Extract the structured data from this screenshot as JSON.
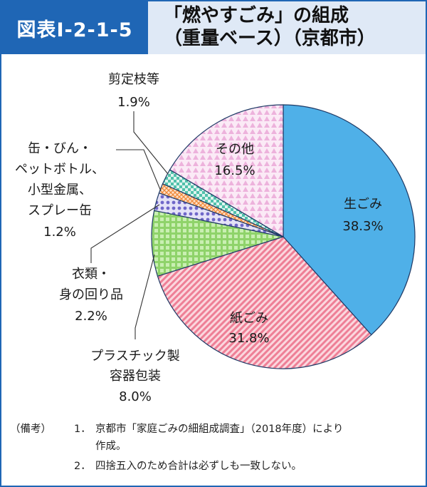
{
  "header": {
    "figure_number": "図表Ⅰ-2-1-5",
    "title_line1": "「燃やすごみ」の組成",
    "title_line2": "（重量ベース）（京都市）"
  },
  "chart_data": {
    "type": "pie",
    "title": "「燃やすごみ」の組成（重量ベース）（京都市）",
    "start": "top, clockwise",
    "slices": [
      {
        "label": "生ごみ",
        "value": 38.3,
        "value_label": "38.3%",
        "color": "#4fb0e8",
        "pattern": "solid"
      },
      {
        "label": "紙ごみ",
        "value": 31.8,
        "value_label": "31.8%",
        "color": "#f08fa3",
        "pattern": "diagonal-stripes"
      },
      {
        "label": "プラスチック製容器包装",
        "value": 8.0,
        "value_label": "8.0%",
        "color": "#8fd36a",
        "pattern": "grid"
      },
      {
        "label": "衣類・身の回り品",
        "value": 2.2,
        "value_label": "2.2%",
        "color": "#8e86d6",
        "pattern": "dots"
      },
      {
        "label": "缶・びん・ペットボトル、小型金属、スプレー缶",
        "value": 1.2,
        "value_label": "1.2%",
        "color": "#f5a05a",
        "pattern": "crosshatch"
      },
      {
        "label": "剪定枝等",
        "value": 1.9,
        "value_label": "1.9%",
        "color": "#5cc8b4",
        "pattern": "checker"
      },
      {
        "label": "その他",
        "value": 16.5,
        "value_label": "16.5%",
        "color": "#f2c4e6",
        "pattern": "triangles"
      }
    ],
    "labels": {
      "namagomi": {
        "name": "生ごみ",
        "value": "38.3%"
      },
      "kamigomi": {
        "name": "紙ごみ",
        "value": "31.8%"
      },
      "plastic": {
        "lines": [
          "プラスチック製",
          "容器包装"
        ],
        "value": "8.0%"
      },
      "irui": {
        "lines": [
          "衣類・",
          "身の回り品"
        ],
        "value": "2.2%"
      },
      "can": {
        "lines": [
          "缶・びん・",
          "ペットボトル、",
          "小型金属、",
          "スプレー缶"
        ],
        "value": "1.2%"
      },
      "sentei": {
        "name": "剪定枝等",
        "value": "1.9%"
      },
      "sonota": {
        "name": "その他",
        "value": "16.5%"
      }
    }
  },
  "notes": {
    "key": "（備考）",
    "items": [
      {
        "num": "1．",
        "lines": [
          "京都市「家庭ごみの細組成調査」（2018年度）により",
          "作成。"
        ]
      },
      {
        "num": "2．",
        "lines": [
          "四捨五入のため合計は必ずしも一致しない。"
        ]
      }
    ]
  }
}
